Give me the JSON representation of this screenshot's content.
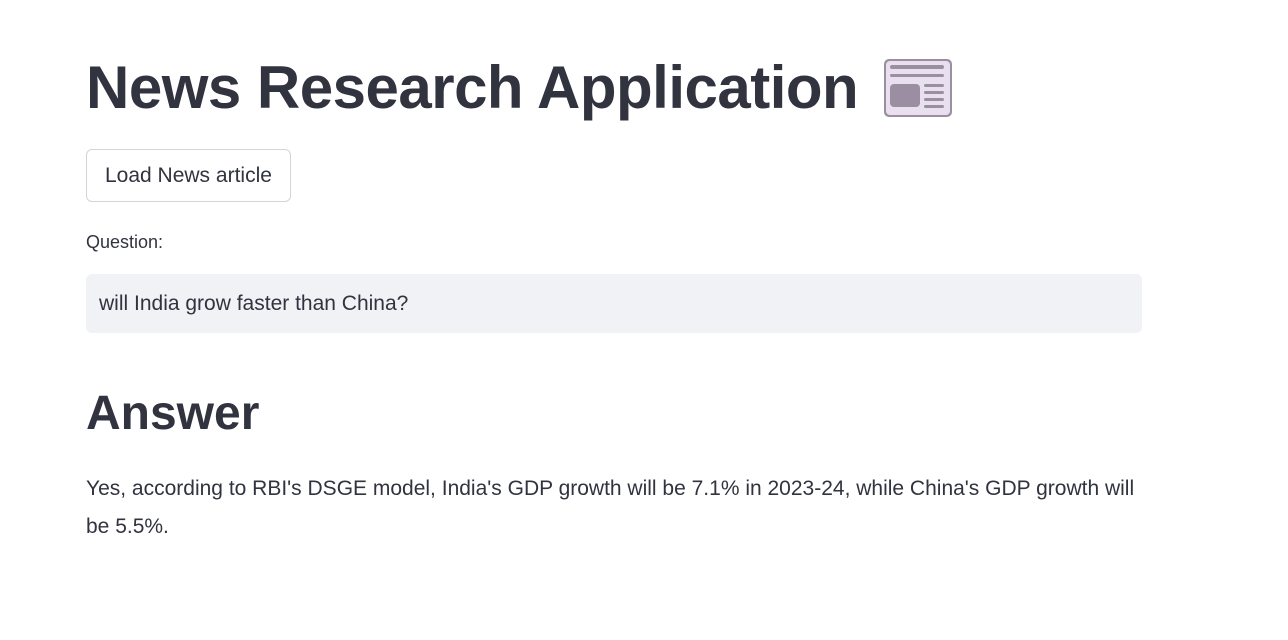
{
  "header": {
    "title": "News Research Application",
    "title_icon": "newspaper-icon"
  },
  "actions": {
    "load_button_label": "Load News article"
  },
  "question": {
    "label": "Question:",
    "value": "will India grow faster than China?"
  },
  "answer": {
    "heading": "Answer",
    "text": "Yes, according to RBI's DSGE model, India's GDP growth will be 7.1% in 2023-24, while China's GDP growth will be 5.5%."
  },
  "colors": {
    "text": "#31333f",
    "input_background": "#f0f2f6",
    "button_border": "#d3d4d8",
    "icon_fill": "#e8e0ee",
    "icon_stroke": "#9b8ea3"
  }
}
